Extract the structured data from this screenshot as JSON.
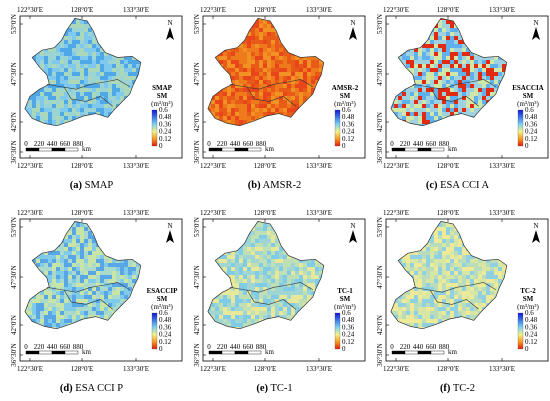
{
  "axes": {
    "top": [
      "122°30′E",
      "128°0′E",
      "133°30′E"
    ],
    "bottom": [
      "122°30′E",
      "128°0′E",
      "133°30′E"
    ],
    "left": [
      "53°0′N",
      "47°30′N",
      "42°0′N",
      "36°30′N"
    ]
  },
  "north_label": "N",
  "scale": {
    "ticks": [
      "0",
      "220",
      "440",
      "660",
      "880"
    ],
    "unit": "km"
  },
  "legend": {
    "unit": "(m³/m³)",
    "ticks": [
      "0.6",
      "0.48",
      "0.36",
      "0.24",
      "0.12",
      "0"
    ],
    "colors": [
      "#1212d8",
      "#3c78e8",
      "#7fd2f0",
      "#f2f28a",
      "#f59a20",
      "#e81a0a"
    ]
  },
  "panels": [
    {
      "letter": "(a)",
      "caption": "SMAP",
      "legend_title": [
        "SMAP",
        "SM"
      ],
      "palette": [
        "#4ea7e7",
        "#7fc8ee",
        "#9bd4d2",
        "#aad8b8"
      ]
    },
    {
      "letter": "(b)",
      "caption": "AMSR-2",
      "legend_title": [
        "AMSR-2",
        "SM"
      ],
      "palette": [
        "#e85a18",
        "#ef7a1c",
        "#f29124",
        "#e8461a"
      ]
    },
    {
      "letter": "(c)",
      "caption": "ESA CCI A",
      "legend_title": [
        "ESACCIA",
        "SM"
      ],
      "palette": [
        "#e02a12",
        "#5fb0ec",
        "#9ed2e0",
        "#cfe8a8"
      ]
    },
    {
      "letter": "(d)",
      "caption": "ESA CCI P",
      "legend_title": [
        "ESACCIP",
        "SM"
      ],
      "palette": [
        "#58a6e6",
        "#7fcbe8",
        "#a9dacb",
        "#c8e4a6"
      ]
    },
    {
      "letter": "(e)",
      "caption": "TC-1",
      "legend_title": [
        "TC-1",
        "SM"
      ],
      "palette": [
        "#7fcbe8",
        "#9fd6d4",
        "#bfe0b4",
        "#e8e89a"
      ]
    },
    {
      "letter": "(f)",
      "caption": "TC-2",
      "legend_title": [
        "TC-2",
        "SM"
      ],
      "palette": [
        "#8fd0e2",
        "#b8dcbc",
        "#d8e6a4",
        "#eeea98"
      ]
    }
  ]
}
